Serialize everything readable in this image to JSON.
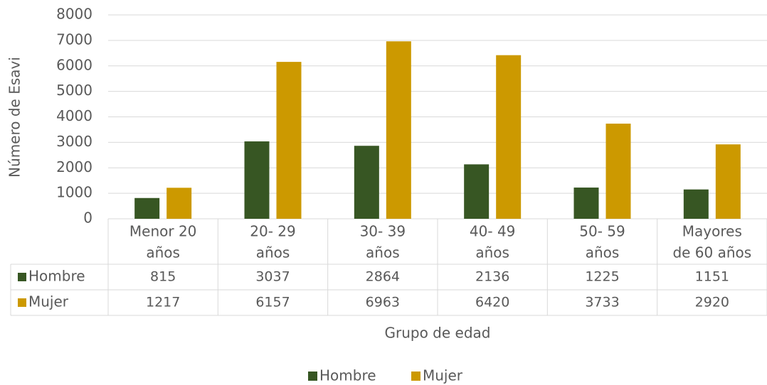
{
  "chart_data": {
    "type": "bar",
    "y_label": "Número de Esavi",
    "x_label": "Grupo de edad",
    "categories": [
      [
        "Menor 20",
        "años"
      ],
      [
        "20- 29",
        "años"
      ],
      [
        "30- 39",
        "años"
      ],
      [
        "40- 49",
        "años"
      ],
      [
        "50- 59",
        "años"
      ],
      [
        "Mayores",
        "de 60 años"
      ]
    ],
    "series": [
      {
        "name": "Hombre",
        "color": "#375623",
        "values": [
          815,
          3037,
          2864,
          2136,
          1225,
          1151
        ]
      },
      {
        "name": "Mujer",
        "color": "#cc9900",
        "values": [
          1217,
          6157,
          6963,
          6420,
          3733,
          2920
        ]
      }
    ],
    "ylim": [
      0,
      8000
    ],
    "yticks": [
      0,
      1000,
      2000,
      3000,
      4000,
      5000,
      6000,
      7000,
      8000
    ],
    "grid": true,
    "data_table": true,
    "legend": "bottom"
  }
}
